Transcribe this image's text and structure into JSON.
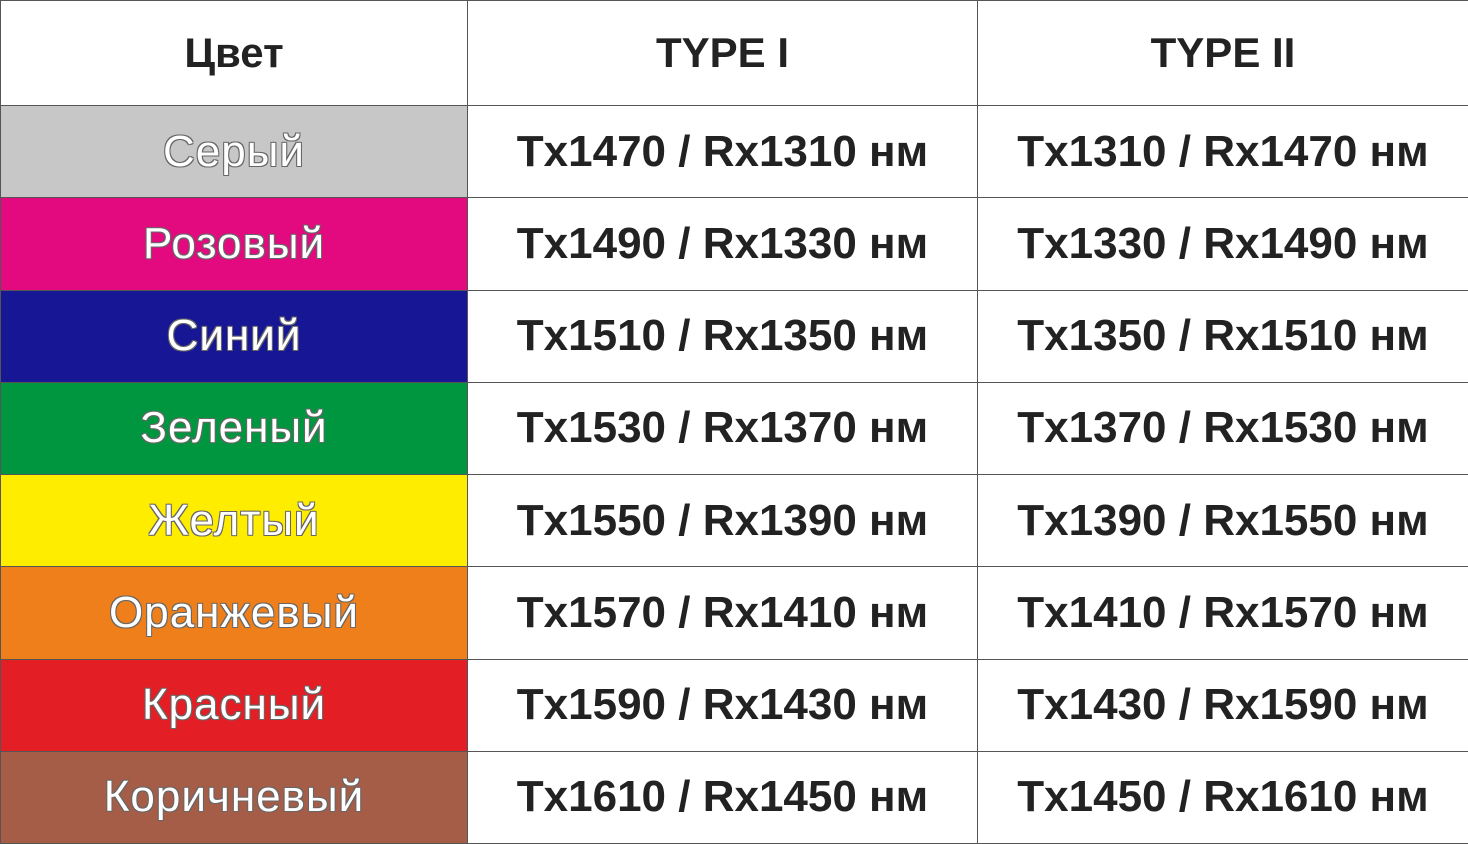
{
  "headers": [
    "Цвет",
    "TYPE I",
    "TYPE II"
  ],
  "rows": [
    {
      "color_name": "Серый",
      "color_hex": "#c6c7c6",
      "type1": "Tx1470 / Rx1310 нм",
      "type2": "Tx1310 / Rx1470 нм"
    },
    {
      "color_name": "Розовый",
      "color_hex": "#e3097f",
      "type1": "Tx1490 / Rx1330 нм",
      "type2": "Tx1330 / Rx1490 нм"
    },
    {
      "color_name": "Синий",
      "color_hex": "#171796",
      "type1": "Tx1510 / Rx1350 нм",
      "type2": "Tx1350 / Rx1510 нм"
    },
    {
      "color_name": "Зеленый",
      "color_hex": "#009640",
      "type1": "Tx1530 / Rx1370 нм",
      "type2": "Tx1370 / Rx1530 нм"
    },
    {
      "color_name": "Желтый",
      "color_hex": "#ffed00",
      "type1": "Tx1550 / Rx1390 нм",
      "type2": "Tx1390 / Rx1550 нм"
    },
    {
      "color_name": "Оранжевый",
      "color_hex": "#ef7f1a",
      "type1": "Tx1570 / Rx1410 нм",
      "type2": "Tx1410 / Rx1570 нм"
    },
    {
      "color_name": "Красный",
      "color_hex": "#e31e24",
      "type1": "Tx1590 / Rx1430 нм",
      "type2": "Tx1430 / Rx1590 нм"
    },
    {
      "color_name": "Коричневый",
      "color_hex": "#a55d48",
      "type1": "Tx1610 / Rx1450 нм",
      "type2": "Tx1450 / Rx1610 нм"
    }
  ]
}
